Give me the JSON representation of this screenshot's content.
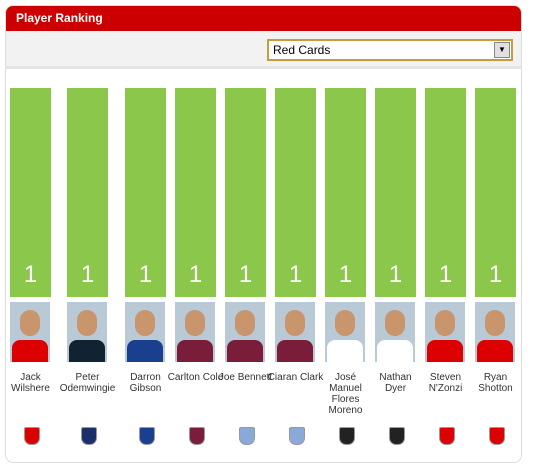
{
  "chart_data": {
    "type": "bar",
    "title": "Player Ranking",
    "metric": "Red Cards",
    "categories": [
      "Jack Wilshere",
      "Peter Odemwingie",
      "Darron Gibson",
      "Carlton Cole",
      "Joe Bennett",
      "Ciaran Clark",
      "José Manuel Flores Moreno",
      "Nathan Dyer",
      "Steven N'Zonzi",
      "Ryan Shotton"
    ],
    "values": [
      1,
      1,
      1,
      1,
      1,
      1,
      1,
      1,
      1,
      1
    ],
    "color": "#8bc74a"
  }
}
